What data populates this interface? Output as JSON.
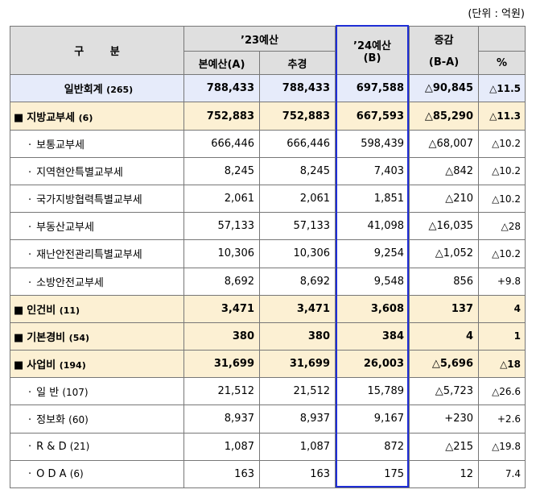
{
  "unit_note": "(단위 : 억원)",
  "header": {
    "category": "구 분",
    "y23": "’23예산",
    "main_budget": "본예산(A)",
    "supplementary": "추경",
    "y24_line1": "’24예산",
    "y24_line2": "(B)",
    "change_line1": "증감",
    "change_line2": "(B-A)",
    "percent": "%"
  },
  "total": {
    "label": "일반회계",
    "count": "(265)",
    "a": "788,433",
    "supp": "788,433",
    "b": "697,588",
    "diff": "△90,845",
    "pct": "△11.5"
  },
  "groups": [
    {
      "label": "지방교부세",
      "count": "(6)",
      "a": "752,883",
      "supp": "752,883",
      "b": "667,593",
      "diff": "△85,290",
      "pct": "△11.3",
      "items": [
        {
          "label": "보통교부세",
          "a": "666,446",
          "supp": "666,446",
          "b": "598,439",
          "diff": "△68,007",
          "pct": "△10.2"
        },
        {
          "label": "지역현안특별교부세",
          "a": "8,245",
          "supp": "8,245",
          "b": "7,403",
          "diff": "△842",
          "pct": "△10.2"
        },
        {
          "label": "국가지방협력특별교부세",
          "a": "2,061",
          "supp": "2,061",
          "b": "1,851",
          "diff": "△210",
          "pct": "△10.2"
        },
        {
          "label": "부동산교부세",
          "a": "57,133",
          "supp": "57,133",
          "b": "41,098",
          "diff": "△16,035",
          "pct": "△28"
        },
        {
          "label": "재난안전관리특별교부세",
          "a": "10,306",
          "supp": "10,306",
          "b": "9,254",
          "diff": "△1,052",
          "pct": "△10.2"
        },
        {
          "label": "소방안전교부세",
          "a": "8,692",
          "supp": "8,692",
          "b": "9,548",
          "diff": "856",
          "pct": "+9.8"
        }
      ]
    },
    {
      "label": "인건비",
      "count": "(11)",
      "a": "3,471",
      "supp": "3,471",
      "b": "3,608",
      "diff": "137",
      "pct": "4",
      "items": []
    },
    {
      "label": "기본경비",
      "count": "(54)",
      "a": "380",
      "supp": "380",
      "b": "384",
      "diff": "4",
      "pct": "1",
      "items": []
    },
    {
      "label": "사업비",
      "count": "(194)",
      "a": "31,699",
      "supp": "31,699",
      "b": "26,003",
      "diff": "△5,696",
      "pct": "△18",
      "items": [
        {
          "label": "일 반",
          "count": "(107)",
          "a": "21,512",
          "supp": "21,512",
          "b": "15,789",
          "diff": "△5,723",
          "pct": "△26.6"
        },
        {
          "label": "정보화",
          "count": "(60)",
          "a": "8,937",
          "supp": "8,937",
          "b": "9,167",
          "diff": "+230",
          "pct": "+2.6"
        },
        {
          "label": "R & D",
          "count": "(21)",
          "a": "1,087",
          "supp": "1,087",
          "b": "872",
          "diff": "△215",
          "pct": "△19.8"
        },
        {
          "label": "O D A",
          "count": "(6)",
          "a": "163",
          "supp": "163",
          "b": "175",
          "diff": "12",
          "pct": "7.4"
        }
      ]
    }
  ],
  "highlight_color": "#1f2ed6"
}
